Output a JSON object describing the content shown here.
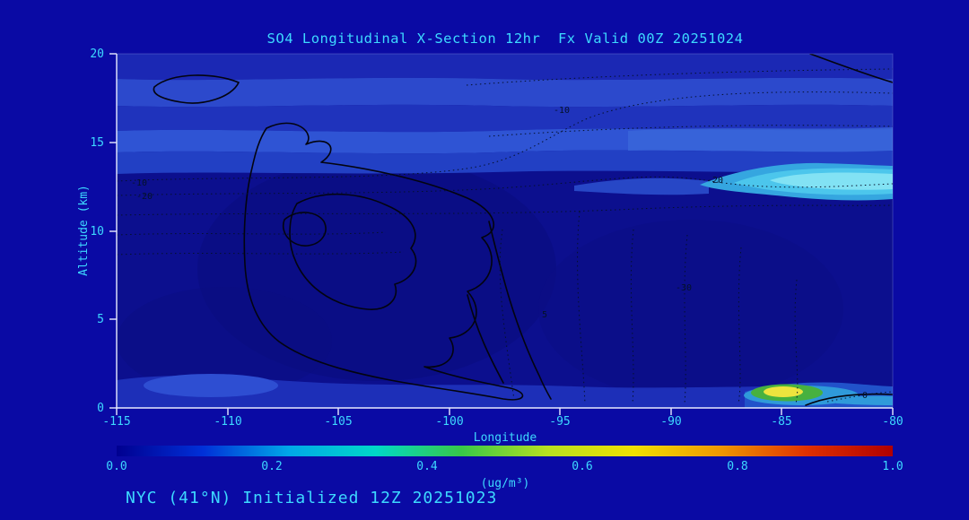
{
  "page": {
    "background_color": "#0a0aa4",
    "text_color": "#3dd9ff",
    "axis_color": "#e8ecff"
  },
  "chart_data": {
    "type": "heatmap",
    "title": "SO4 Longitudinal X-Section 12hr  Fx Valid 00Z 20251024",
    "xlabel": "Longitude",
    "ylabel": "Altitude (km)",
    "xlim": [
      -115,
      -80
    ],
    "ylim": [
      0,
      20
    ],
    "x_ticks": [
      "-115",
      "-110",
      "-105",
      "-100",
      "-95",
      "-90",
      "-85",
      "-80"
    ],
    "y_ticks": [
      "0",
      "5",
      "10",
      "15",
      "20"
    ],
    "colorbar": {
      "label": "(ug/m³)",
      "range": [
        0.0,
        1.0
      ],
      "ticks": [
        "0.0",
        "0.2",
        "0.4",
        "0.6",
        "0.8",
        "1.0"
      ],
      "colors": [
        "#000090",
        "#0030d8",
        "#00a8e8",
        "#00d8c8",
        "#38c848",
        "#b8e020",
        "#f0e000",
        "#f09800",
        "#e03000",
        "#b00000"
      ]
    },
    "contour_labels": [
      {
        "text": "-10",
        "lon": -95.3,
        "alt": 16.9
      },
      {
        "text": "-20",
        "lon": -88.3,
        "alt": 12.9
      },
      {
        "text": "-10",
        "lon": -114.2,
        "alt": 12.7
      },
      {
        "text": "-20",
        "lon": -113.9,
        "alt": 11.9
      },
      {
        "text": "-30",
        "lon": -89.6,
        "alt": 6.8
      },
      {
        "text": "5",
        "lon": -95.7,
        "alt": 5.2
      },
      {
        "text": "0",
        "lon": -81.3,
        "alt": 0.7
      }
    ],
    "field_estimate": {
      "description": "Approximate SO4 filled-contour values read from shading",
      "units": "ug/m3",
      "longitudes": [
        -115,
        -110,
        -105,
        -100,
        -95,
        -90,
        -85,
        -80
      ],
      "altitudes_km": [
        0,
        3,
        6,
        9,
        12,
        15,
        18
      ],
      "values": [
        [
          0.15,
          0.18,
          0.14,
          0.12,
          0.1,
          0.12,
          0.6,
          0.22
        ],
        [
          0.1,
          0.12,
          0.1,
          0.08,
          0.07,
          0.08,
          0.1,
          0.12
        ],
        [
          0.08,
          0.1,
          0.1,
          0.08,
          0.06,
          0.06,
          0.08,
          0.1
        ],
        [
          0.08,
          0.11,
          0.12,
          0.1,
          0.06,
          0.06,
          0.08,
          0.1
        ],
        [
          0.1,
          0.1,
          0.1,
          0.08,
          0.08,
          0.1,
          0.28,
          0.38
        ],
        [
          0.2,
          0.18,
          0.16,
          0.15,
          0.15,
          0.18,
          0.24,
          0.28
        ],
        [
          0.16,
          0.2,
          0.18,
          0.15,
          0.14,
          0.15,
          0.18,
          0.22
        ]
      ]
    }
  },
  "footer": {
    "caption": "NYC (41°N) Initialized 12Z 20251023"
  }
}
